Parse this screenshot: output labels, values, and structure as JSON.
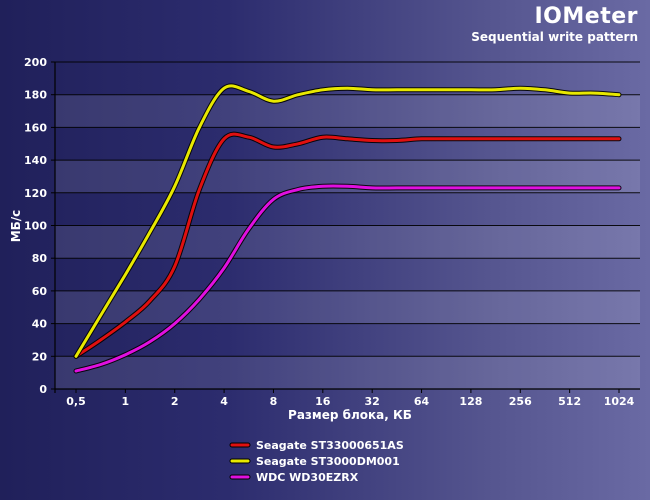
{
  "chart_data": {
    "type": "line",
    "title": "IOMeter",
    "subtitle": "Sequential write pattern",
    "xlabel": "Размер блока, КБ",
    "ylabel": "МБ/с",
    "categories": [
      "0,5",
      "1",
      "2",
      "4",
      "8",
      "16",
      "32",
      "64",
      "128",
      "256",
      "512",
      "1024"
    ],
    "y_ticks": [
      "0",
      "20",
      "40",
      "60",
      "80",
      "100",
      "120",
      "140",
      "160",
      "180",
      "200"
    ],
    "ylim": [
      0,
      200
    ],
    "grid": true,
    "legend_position": "bottom-center",
    "series": [
      {
        "name": "Seagate ST33000651AS",
        "color": "#e01010",
        "x": [
          0,
          0.5,
          1,
          1.5,
          2,
          2.5,
          3,
          3.5,
          4,
          4.5,
          5,
          5.5,
          6,
          6.5,
          7,
          7.5,
          8,
          8.5,
          9,
          9.5,
          10,
          10.5,
          11
        ],
        "values": [
          20,
          30,
          41,
          54,
          75,
          122,
          153,
          154,
          148,
          150,
          154,
          153,
          152,
          152,
          153,
          153,
          153,
          153,
          153,
          153,
          153,
          153,
          153
        ]
      },
      {
        "name": "Seagate ST3000DM001",
        "color": "#e8e800",
        "x": [
          0,
          0.5,
          1,
          1.5,
          2,
          2.5,
          3,
          3.5,
          4,
          4.5,
          5,
          5.5,
          6,
          6.5,
          7,
          7.5,
          8,
          8.5,
          9,
          9.5,
          10,
          10.5,
          11
        ],
        "values": [
          20,
          45,
          70,
          96,
          124,
          160,
          184,
          182,
          176,
          180,
          183,
          184,
          183,
          183,
          183,
          183,
          183,
          183,
          184,
          183,
          181,
          181,
          180
        ]
      },
      {
        "name": "WDC WD30EZRX",
        "color": "#e010e0",
        "x": [
          0,
          0.5,
          1,
          1.5,
          2,
          2.5,
          3,
          3.5,
          4,
          4.5,
          5,
          5.5,
          6,
          6.5,
          7,
          7.5,
          8,
          8.5,
          9,
          9.5,
          10,
          10.5,
          11
        ],
        "values": [
          11,
          15,
          21,
          29,
          40,
          55,
          74,
          98,
          116,
          122,
          124,
          124,
          123,
          123,
          123,
          123,
          123,
          123,
          123,
          123,
          123,
          123,
          123
        ]
      }
    ]
  }
}
